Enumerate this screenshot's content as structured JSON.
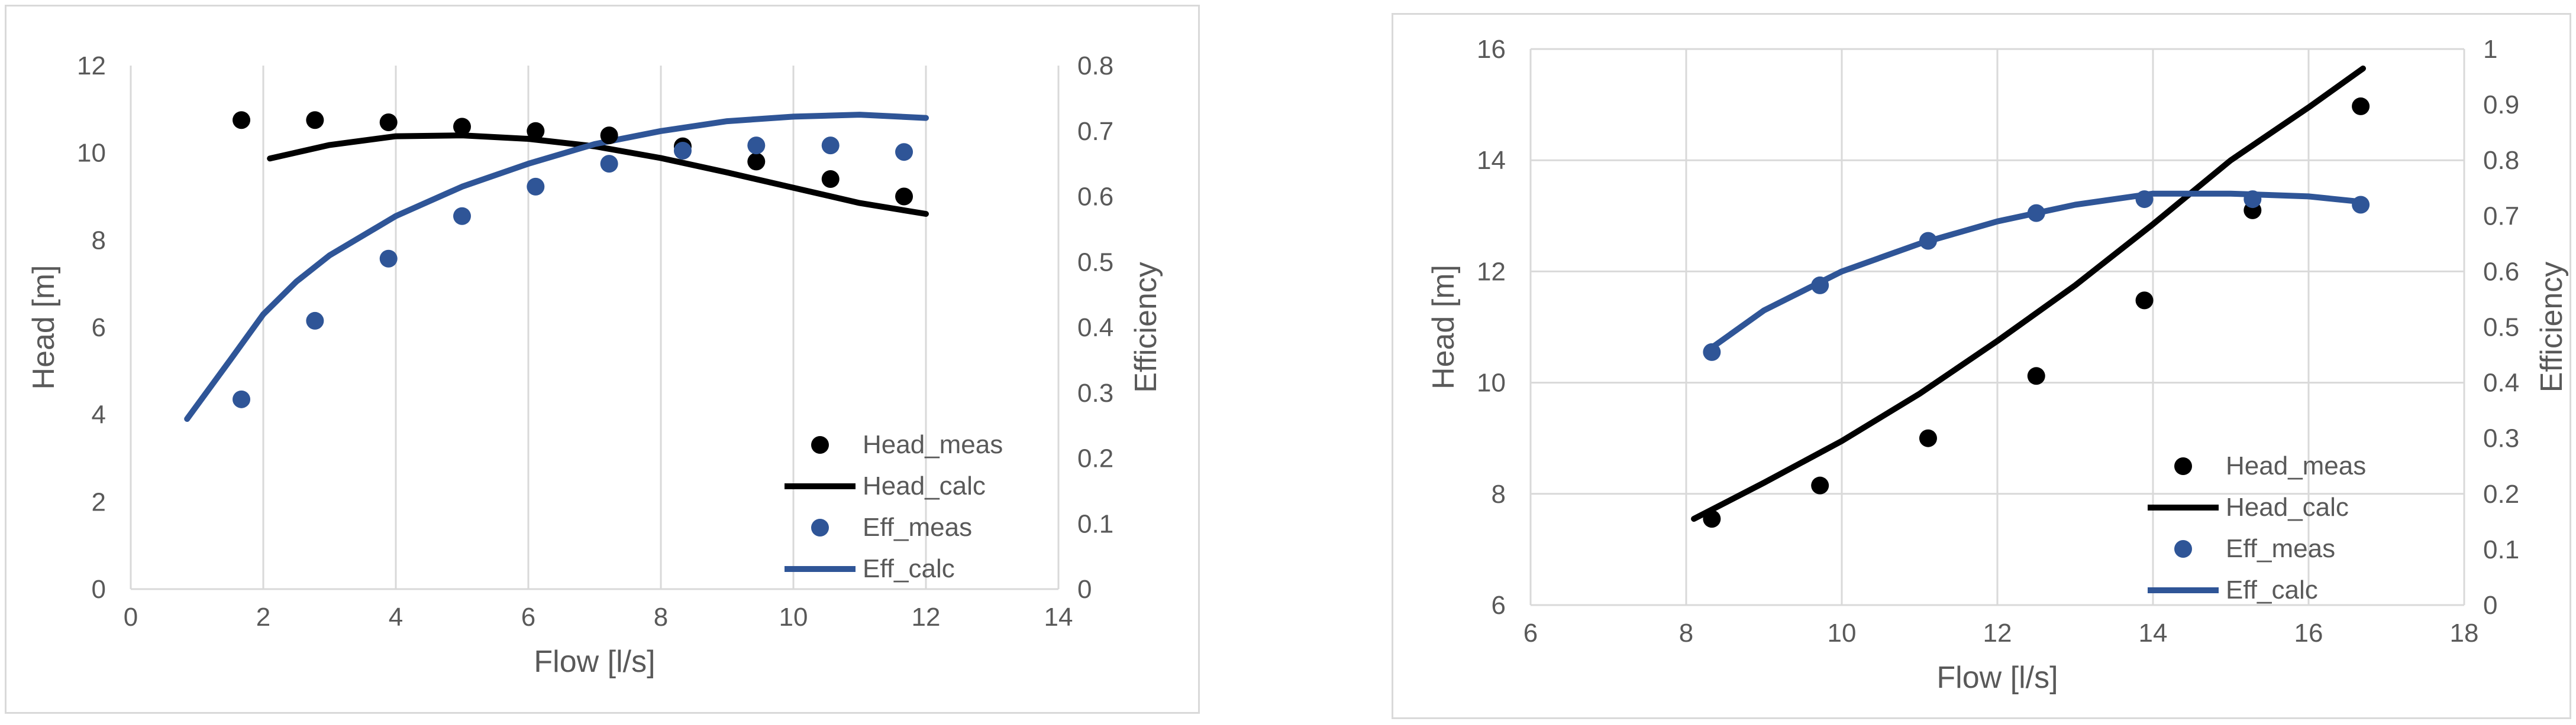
{
  "chart_data": [
    {
      "type": "scatter",
      "xlabel": "Flow [l/s]",
      "ylabel": "Head [m]",
      "y2label": "Efficiency",
      "xlim": [
        0,
        14
      ],
      "ylim": [
        0,
        12
      ],
      "y2lim": [
        0,
        0.8
      ],
      "xticks": [
        "0",
        "2",
        "4",
        "6",
        "8",
        "10",
        "12",
        "14"
      ],
      "yticks": [
        "0",
        "2",
        "4",
        "6",
        "8",
        "10",
        "12"
      ],
      "y2ticks": [
        "0",
        "0.1",
        "0.2",
        "0.3",
        "0.4",
        "0.5",
        "0.6",
        "0.7",
        "0.8"
      ],
      "grid": "vertical",
      "legend_position": "right",
      "series": [
        {
          "name": "Head_meas",
          "kind": "markers",
          "axis": "left",
          "color": "#000000",
          "x": [
            1.67,
            2.78,
            3.89,
            5.0,
            6.11,
            7.22,
            8.33,
            9.44,
            10.56,
            11.67
          ],
          "y": [
            10.75,
            10.75,
            10.7,
            10.6,
            10.5,
            10.4,
            10.15,
            9.8,
            9.4,
            9.0
          ]
        },
        {
          "name": "Head_calc",
          "kind": "line",
          "axis": "left",
          "color": "#000000",
          "x": [
            2.1,
            3.0,
            4.0,
            5.0,
            6.0,
            7.0,
            8.0,
            9.0,
            10.0,
            11.0,
            12.0
          ],
          "y": [
            9.87,
            10.18,
            10.38,
            10.4,
            10.32,
            10.15,
            9.88,
            9.55,
            9.2,
            8.85,
            8.6
          ]
        },
        {
          "name": "Eff_meas",
          "kind": "markers",
          "axis": "right",
          "color": "#2F5597",
          "x": [
            1.67,
            2.78,
            3.89,
            5.0,
            6.11,
            7.22,
            8.33,
            9.44,
            10.56,
            11.67
          ],
          "y": [
            0.29,
            0.41,
            0.505,
            0.57,
            0.615,
            0.65,
            0.67,
            0.678,
            0.678,
            0.668
          ]
        },
        {
          "name": "Eff_calc",
          "kind": "line",
          "axis": "right",
          "color": "#2F5597",
          "x": [
            0.85,
            1.5,
            2.0,
            2.5,
            3.0,
            4.0,
            5.0,
            6.0,
            7.0,
            8.0,
            9.0,
            10.0,
            11.0,
            12.0
          ],
          "y": [
            0.26,
            0.35,
            0.42,
            0.47,
            0.51,
            0.57,
            0.615,
            0.65,
            0.68,
            0.7,
            0.715,
            0.722,
            0.725,
            0.72
          ]
        }
      ]
    },
    {
      "type": "scatter",
      "xlabel": "Flow [l/s]",
      "ylabel": "Head [m]",
      "y2label": "Efficiency",
      "xlim": [
        6,
        18
      ],
      "ylim": [
        6,
        16
      ],
      "y2lim": [
        0,
        1
      ],
      "xticks": [
        "6",
        "8",
        "10",
        "12",
        "14",
        "16",
        "18"
      ],
      "yticks": [
        "6",
        "8",
        "10",
        "12",
        "14",
        "16"
      ],
      "y2ticks": [
        "0",
        "0.1",
        "0.2",
        "0.3",
        "0.4",
        "0.5",
        "0.6",
        "0.7",
        "0.8",
        "0.9",
        "1"
      ],
      "grid": "both",
      "legend_position": "bottom-right",
      "series": [
        {
          "name": "Head_meas",
          "kind": "markers",
          "axis": "left",
          "color": "#000000",
          "x": [
            8.33,
            9.72,
            11.11,
            12.5,
            13.89,
            15.28,
            16.67
          ],
          "y": [
            7.55,
            8.15,
            9.0,
            10.12,
            11.48,
            13.1,
            14.97
          ]
        },
        {
          "name": "Head_calc",
          "kind": "line",
          "axis": "left",
          "color": "#000000",
          "x": [
            8.1,
            9.0,
            10.0,
            11.0,
            12.0,
            13.0,
            14.0,
            15.0,
            16.0,
            16.7
          ],
          "y": [
            7.55,
            8.2,
            8.95,
            9.8,
            10.75,
            11.75,
            12.85,
            14.0,
            14.95,
            15.65
          ]
        },
        {
          "name": "Eff_meas",
          "kind": "markers",
          "axis": "right",
          "color": "#2F5597",
          "x": [
            8.33,
            9.72,
            11.11,
            12.5,
            13.89,
            15.28,
            16.67
          ],
          "y": [
            0.455,
            0.575,
            0.655,
            0.705,
            0.73,
            0.73,
            0.72
          ]
        },
        {
          "name": "Eff_calc",
          "kind": "line",
          "axis": "right",
          "color": "#2F5597",
          "x": [
            8.3,
            9.0,
            10.0,
            11.0,
            12.0,
            13.0,
            14.0,
            15.0,
            16.0,
            16.7
          ],
          "y": [
            0.46,
            0.53,
            0.6,
            0.65,
            0.69,
            0.72,
            0.74,
            0.74,
            0.735,
            0.725
          ]
        }
      ]
    }
  ]
}
